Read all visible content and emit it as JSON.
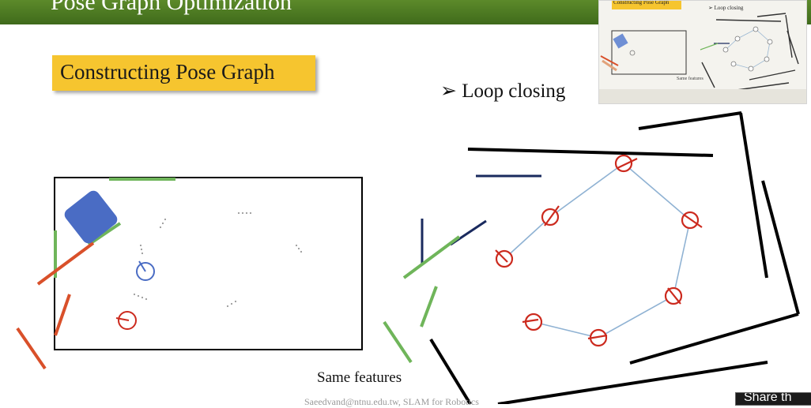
{
  "slide": {
    "title": "Pose Graph Optimization",
    "badge_label": "Constructing Pose Graph",
    "bullet_text": "➢ Loop closing",
    "caption": "Same features",
    "footer": "Saeedvand@ntnu.edu.tw, SLAM for Robotics"
  },
  "inset": {
    "title": "Constructing Pose Graph",
    "bullet": "➢ Loop closing",
    "caption": "Same features"
  },
  "overlay": {
    "share_label": "Share th"
  },
  "colors": {
    "title_bar": "#4e7c24",
    "badge": "#f6c52f",
    "pose_red": "#cc2a1e",
    "robot_blue": "#4a6cc4",
    "edge_blue": "#8fb2d3",
    "feature_green": "#6fb55a",
    "feature_orange": "#d9502a",
    "wall_black": "#000000",
    "wall_navy": "#1a2a5e"
  }
}
